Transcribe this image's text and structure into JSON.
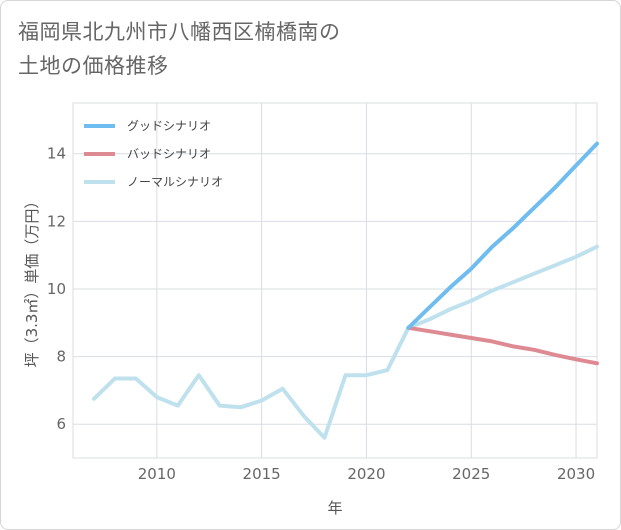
{
  "title_lines": [
    "福岡県北九州市八幡西区楠橋南の",
    "土地の価格推移"
  ],
  "chart_data": {
    "type": "line",
    "title": "福岡県北九州市八幡西区楠橋南の土地の価格推移",
    "xlabel": "年",
    "ylabel": "坪（3.3㎡）単価（万円）",
    "xlim": [
      2006,
      2031
    ],
    "ylim": [
      5,
      15.5
    ],
    "x_ticks": [
      2010,
      2015,
      2020,
      2025,
      2030
    ],
    "y_ticks": [
      6,
      8,
      10,
      12,
      14
    ],
    "grid": true,
    "legend_position": "top-left",
    "series": [
      {
        "name": "グッドシナリオ",
        "color": "#6fbdf0",
        "x": [
          2022,
          2023,
          2024,
          2025,
          2026,
          2027,
          2028,
          2029,
          2030,
          2031
        ],
        "values": [
          8.85,
          9.45,
          10.05,
          10.6,
          11.25,
          11.8,
          12.4,
          13.0,
          13.65,
          14.3
        ]
      },
      {
        "name": "バッドシナリオ",
        "color": "#de8a93",
        "x": [
          2022,
          2023,
          2024,
          2025,
          2026,
          2027,
          2028,
          2029,
          2030,
          2031
        ],
        "values": [
          8.85,
          8.75,
          8.65,
          8.55,
          8.45,
          8.3,
          8.2,
          8.05,
          7.92,
          7.8
        ]
      },
      {
        "name": "ノーマルシナリオ",
        "color": "#bfe1ee",
        "x": [
          2007,
          2008,
          2009,
          2010,
          2011,
          2012,
          2013,
          2014,
          2015,
          2016,
          2017,
          2018,
          2019,
          2020,
          2021,
          2022,
          2023,
          2024,
          2025,
          2026,
          2027,
          2028,
          2029,
          2030,
          2031
        ],
        "values": [
          6.75,
          7.35,
          7.35,
          6.8,
          6.55,
          7.45,
          6.55,
          6.5,
          6.7,
          7.05,
          6.25,
          5.6,
          7.45,
          7.45,
          7.6,
          8.85,
          9.1,
          9.4,
          9.65,
          9.95,
          10.2,
          10.45,
          10.7,
          10.95,
          11.25
        ]
      }
    ]
  }
}
